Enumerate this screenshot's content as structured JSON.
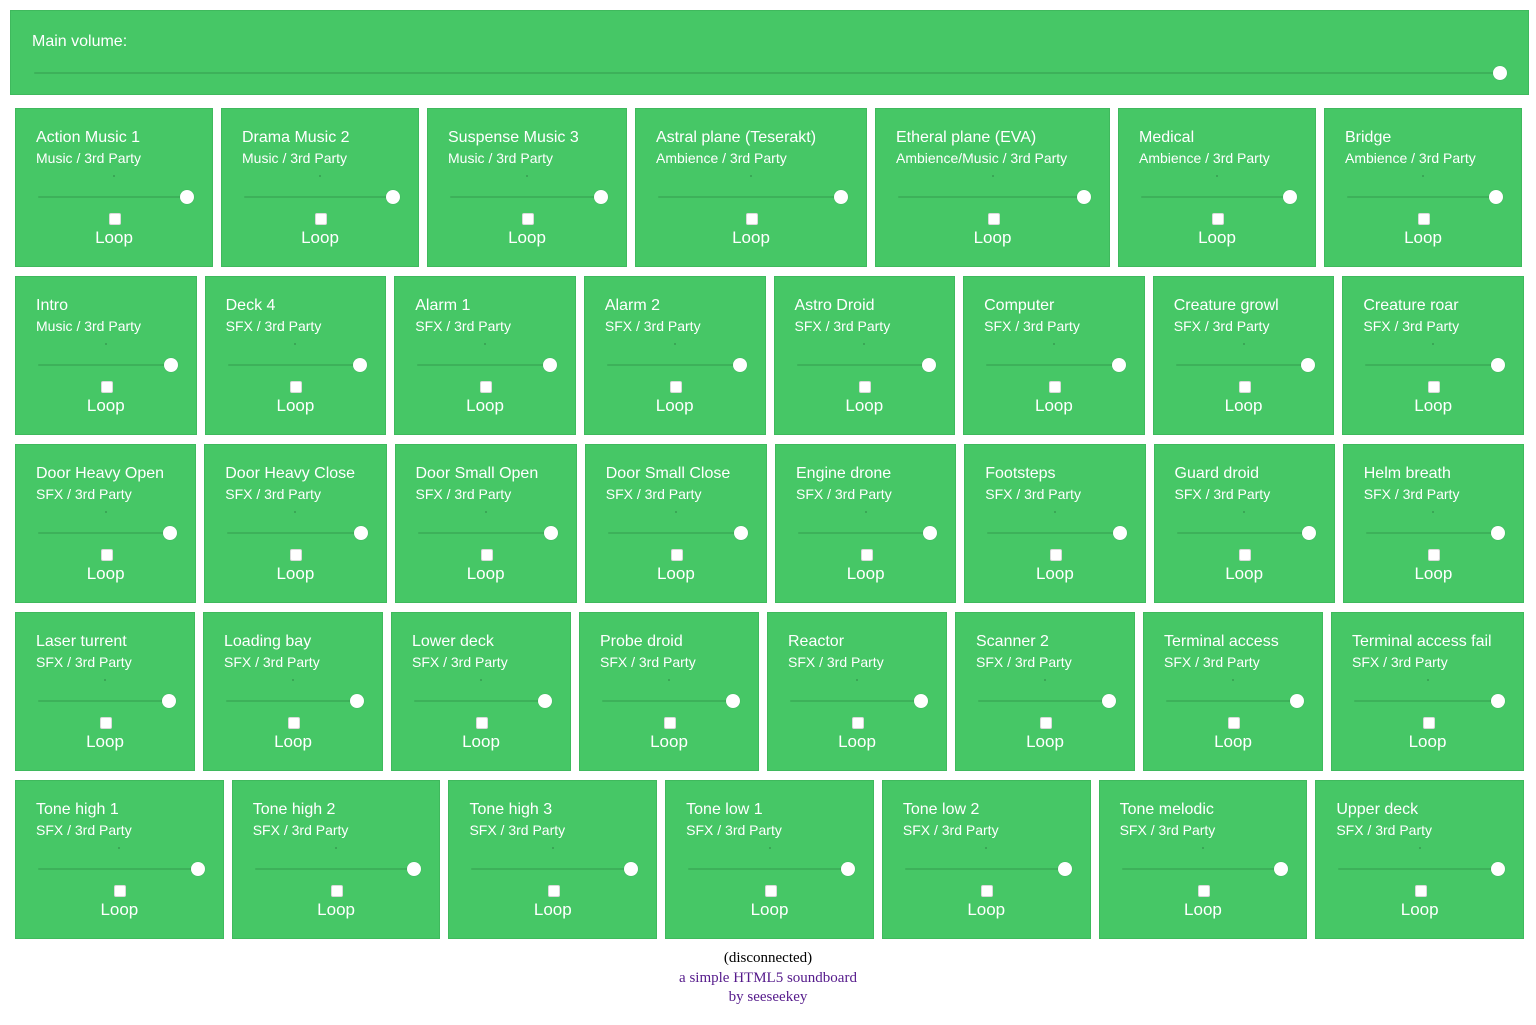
{
  "main_volume": {
    "label": "Main volume:",
    "value": 1.0
  },
  "loop_label": "Loop",
  "rows": [
    [
      {
        "title": "Action Music 1",
        "subtitle": "Music / 3rd Party"
      },
      {
        "title": "Drama Music 2",
        "subtitle": "Music / 3rd Party"
      },
      {
        "title": "Suspense Music 3",
        "subtitle": "Music / 3rd Party"
      },
      {
        "title": "Astral plane (Teserakt)",
        "subtitle": "Ambience / 3rd Party"
      },
      {
        "title": "Etheral plane (EVA)",
        "subtitle": "Ambience/Music / 3rd Party"
      },
      {
        "title": "Medical",
        "subtitle": "Ambience / 3rd Party"
      },
      {
        "title": "Bridge",
        "subtitle": "Ambience / 3rd Party"
      }
    ],
    [
      {
        "title": "Intro",
        "subtitle": "Music / 3rd Party"
      },
      {
        "title": "Deck 4",
        "subtitle": "SFX / 3rd Party"
      },
      {
        "title": "Alarm 1",
        "subtitle": "SFX / 3rd Party"
      },
      {
        "title": "Alarm 2",
        "subtitle": "SFX / 3rd Party"
      },
      {
        "title": "Astro Droid",
        "subtitle": "SFX / 3rd Party"
      },
      {
        "title": "Computer",
        "subtitle": "SFX / 3rd Party"
      },
      {
        "title": "Creature growl",
        "subtitle": "SFX / 3rd Party"
      },
      {
        "title": "Creature roar",
        "subtitle": "SFX / 3rd Party"
      }
    ],
    [
      {
        "title": "Door Heavy Open",
        "subtitle": "SFX / 3rd Party"
      },
      {
        "title": "Door Heavy Close",
        "subtitle": "SFX / 3rd Party"
      },
      {
        "title": "Door Small Open",
        "subtitle": "SFX / 3rd Party"
      },
      {
        "title": "Door Small Close",
        "subtitle": "SFX / 3rd Party"
      },
      {
        "title": "Engine drone",
        "subtitle": "SFX / 3rd Party"
      },
      {
        "title": "Footsteps",
        "subtitle": "SFX / 3rd Party"
      },
      {
        "title": "Guard droid",
        "subtitle": "SFX / 3rd Party"
      },
      {
        "title": "Helm breath",
        "subtitle": "SFX / 3rd Party"
      }
    ],
    [
      {
        "title": "Laser turrent",
        "subtitle": "SFX / 3rd Party"
      },
      {
        "title": "Loading bay",
        "subtitle": "SFX / 3rd Party"
      },
      {
        "title": "Lower deck",
        "subtitle": "SFX / 3rd Party"
      },
      {
        "title": "Probe droid",
        "subtitle": "SFX / 3rd Party"
      },
      {
        "title": "Reactor",
        "subtitle": "SFX / 3rd Party"
      },
      {
        "title": "Scanner 2",
        "subtitle": "SFX / 3rd Party"
      },
      {
        "title": "Terminal access",
        "subtitle": "SFX / 3rd Party"
      },
      {
        "title": "Terminal access fail",
        "subtitle": "SFX / 3rd Party"
      }
    ],
    [
      {
        "title": "Tone high 1",
        "subtitle": "SFX / 3rd Party"
      },
      {
        "title": "Tone high 2",
        "subtitle": "SFX / 3rd Party"
      },
      {
        "title": "Tone high 3",
        "subtitle": "SFX / 3rd Party"
      },
      {
        "title": "Tone low 1",
        "subtitle": "SFX / 3rd Party"
      },
      {
        "title": "Tone low 2",
        "subtitle": "SFX / 3rd Party"
      },
      {
        "title": "Tone melodic",
        "subtitle": "SFX / 3rd Party"
      },
      {
        "title": "Upper deck",
        "subtitle": "SFX / 3rd Party"
      }
    ]
  ],
  "footer": {
    "status": "(disconnected)",
    "line1": "a simple HTML5 soundboard",
    "line2": "by seeseekey"
  }
}
